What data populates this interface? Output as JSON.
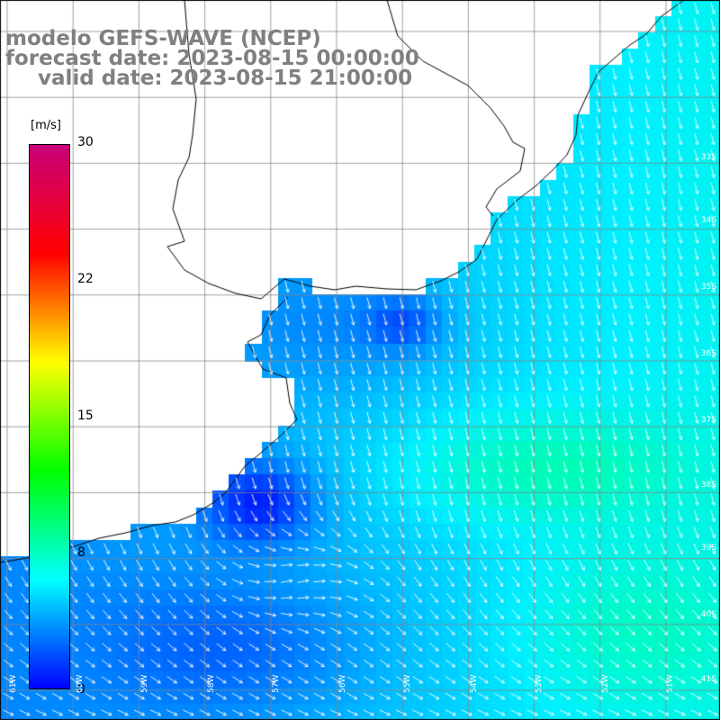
{
  "titles": {
    "line1": "modelo GEFS-WAVE (NCEP)",
    "line2": "forecast date: 2023-08-15 00:00:00",
    "line3": "valid date: 2023-08-15 21:00:00"
  },
  "legend": {
    "unit": "[m/s]",
    "ticks": [
      "30",
      "22",
      "15",
      "8",
      "0"
    ],
    "tick_values": [
      30,
      22,
      15,
      8,
      0
    ],
    "min": 0,
    "max": 30,
    "colors": [
      "#0000ff",
      "#00ffff",
      "#00ff00",
      "#ffff00",
      "#ff0000",
      "#c8007a"
    ]
  },
  "lat_labels": [
    "33S",
    "34S",
    "35S",
    "36S",
    "37S",
    "38S",
    "39S",
    "40S",
    "41S"
  ],
  "lon_labels": [
    "61W",
    "60W",
    "59W",
    "58W",
    "57W",
    "56W",
    "55W",
    "54W",
    "53W",
    "52W",
    "51W"
  ],
  "colors": {
    "land": "#ffffff",
    "grid": "#888888",
    "coast": "#000000",
    "arrow": "#ffffff"
  },
  "chart_data": {
    "type": "heatmap",
    "title": "modelo GEFS-WAVE (NCEP)",
    "variable_unit": "m/s",
    "colorbar_range": [
      0,
      30
    ],
    "lon_range": [
      -61,
      -51
    ],
    "lat_range": [
      -41,
      -30
    ],
    "grid": true,
    "legend_placement": "left",
    "dominant_wind_direction": "towards south / south-southeast",
    "approx_speed_regions": [
      {
        "region": "nearshore south of the estuary",
        "speed_ms": 3
      },
      {
        "region": "inner estuary",
        "speed_ms": 5
      },
      {
        "region": "central open ocean",
        "speed_ms": 8
      },
      {
        "region": "offshore east",
        "speed_ms": 10
      }
    ]
  }
}
